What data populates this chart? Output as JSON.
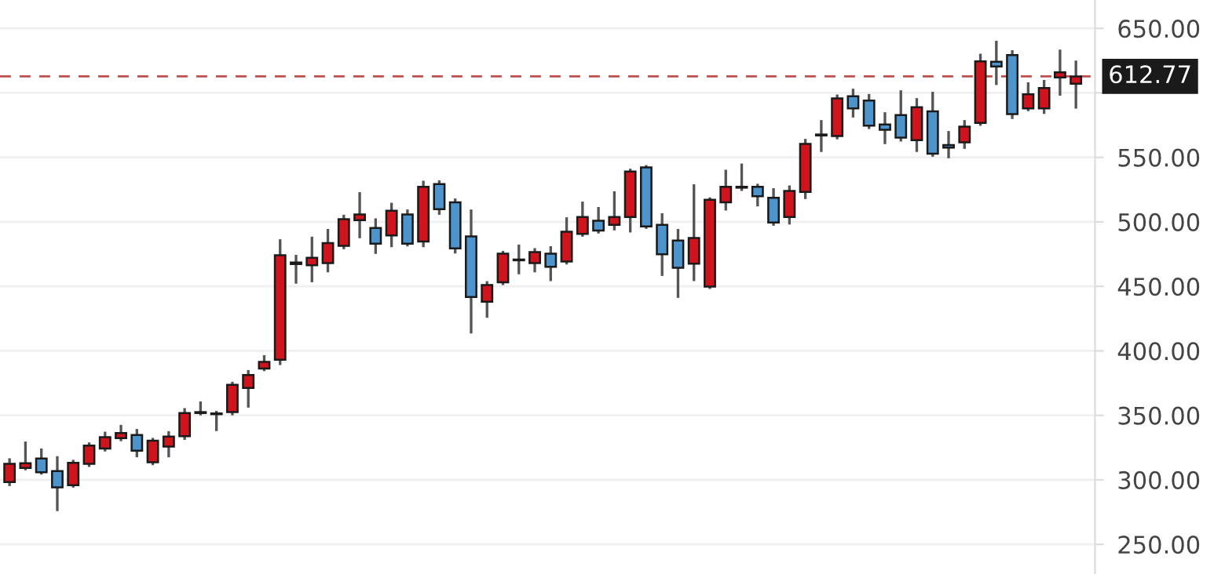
{
  "chart_data": {
    "type": "candlestick",
    "categories": [
      null,
      null,
      null,
      null,
      null,
      null,
      null,
      null,
      null,
      null,
      null,
      null,
      null,
      null,
      null,
      null,
      null,
      null,
      null,
      null,
      null,
      null,
      null,
      null,
      null,
      null,
      null,
      null,
      null,
      null,
      null,
      null,
      null,
      null,
      null,
      null,
      null,
      null,
      null,
      null,
      null,
      null,
      null,
      null,
      null,
      null,
      null,
      null,
      null,
      null,
      null,
      null,
      null,
      null,
      null,
      null,
      null,
      null,
      null,
      null,
      null,
      null,
      null,
      null,
      null,
      null,
      null,
      null
    ],
    "ohlc": [
      [
        298.3,
        315.7,
        296.2,
        312.4
      ],
      [
        309.2,
        328.7,
        308.4,
        312.9
      ],
      [
        316.5,
        323.3,
        305.1,
        305.9
      ],
      [
        306.8,
        317.3,
        276.8,
        294.2
      ],
      [
        295.9,
        314.5,
        295,
        313.2
      ],
      [
        312.4,
        328,
        311,
        326.6
      ],
      [
        324.2,
        336.3,
        323,
        333.1
      ],
      [
        332.3,
        341.6,
        331,
        336.3
      ],
      [
        334.8,
        338.4,
        318.5,
        322.6
      ],
      [
        313.6,
        331.5,
        312.4,
        330.3
      ],
      [
        325.8,
        336.7,
        318.5,
        333.5
      ],
      [
        333.9,
        354.6,
        332,
        351.8
      ],
      [
        351.8,
        359.8,
        351,
        352.5
      ],
      [
        350.9,
        352.5,
        338.8,
        351.5
      ],
      [
        352.5,
        375,
        351,
        373.7
      ],
      [
        371.2,
        384.1,
        357,
        381.3
      ],
      [
        386.2,
        395.6,
        385.3,
        391.4
      ],
      [
        393.1,
        485.5,
        390,
        474.1
      ],
      [
        467.3,
        473.4,
        453.1,
        468.5
      ],
      [
        466.4,
        487.5,
        454.2,
        472.1
      ],
      [
        468,
        493.5,
        461.9,
        483.5
      ],
      [
        481.4,
        504.5,
        479.8,
        502.1
      ],
      [
        501.3,
        522,
        488.3,
        505.7
      ],
      [
        495.2,
        501.7,
        476.2,
        483.1
      ],
      [
        489.5,
        513.8,
        481.4,
        508.6
      ],
      [
        505.7,
        508.6,
        482,
        483.1
      ],
      [
        484.7,
        530.9,
        481.4,
        527.2
      ],
      [
        529.3,
        531.2,
        506.5,
        509.8
      ],
      [
        515.1,
        517.1,
        476.5,
        479.4
      ],
      [
        488.7,
        508.6,
        414.5,
        441.7
      ],
      [
        438.1,
        453,
        426.7,
        451
      ],
      [
        453.1,
        476.5,
        452,
        475.3
      ],
      [
        470.2,
        481.4,
        460.4,
        470.8
      ],
      [
        468,
        478.6,
        461.9,
        476.5
      ],
      [
        475.3,
        480.1,
        455.1,
        465.2
      ],
      [
        469.2,
        502.5,
        468,
        492.3
      ],
      [
        490.7,
        514.7,
        489.5,
        503.8
      ],
      [
        500.8,
        510.5,
        492,
        493.2
      ],
      [
        497.7,
        522.7,
        494.4,
        503.8
      ],
      [
        503.8,
        540.2,
        492.8,
        539
      ],
      [
        542.2,
        543,
        495.6,
        496.5
      ],
      [
        497.7,
        505.7,
        459.1,
        474.9
      ],
      [
        485.5,
        493.5,
        442.1,
        464.4
      ],
      [
        467.6,
        528.1,
        455.1,
        487.5
      ],
      [
        449.8,
        518,
        449,
        517.1
      ],
      [
        515.1,
        539.4,
        509.8,
        527.2
      ],
      [
        526.5,
        544.2,
        525,
        527.2
      ],
      [
        527.2,
        528.5,
        513,
        519.9
      ],
      [
        518.7,
        525.1,
        498,
        499.5
      ],
      [
        503.8,
        527.2,
        499,
        523.9
      ],
      [
        523.2,
        563.3,
        518.7,
        560.4
      ],
      [
        567,
        577.9,
        555.2,
        567.7
      ],
      [
        566.5,
        597.7,
        565,
        595.7
      ],
      [
        597.4,
        602.2,
        581.9,
        588
      ],
      [
        594.1,
        598.1,
        573,
        574.6
      ],
      [
        575.5,
        584,
        561.3,
        571.4
      ],
      [
        582.8,
        601,
        563.3,
        565.3
      ],
      [
        563.3,
        594.9,
        555.2,
        588.9
      ],
      [
        585.6,
        599.8,
        551.5,
        552.8
      ],
      [
        559.6,
        569.4,
        550.3,
        557.6
      ],
      [
        561.6,
        577.9,
        557.6,
        573.8
      ],
      [
        576.7,
        629.3,
        575.5,
        624.5
      ],
      [
        624.1,
        639.4,
        607.1,
        620.5
      ],
      [
        629.3,
        632.1,
        580.7,
        583.5
      ],
      [
        588,
        607.1,
        586.8,
        598.9
      ],
      [
        588,
        609,
        584.7,
        603.8
      ],
      [
        611.9,
        632.6,
        598.9,
        615.9
      ],
      [
        607.1,
        624.1,
        588.8,
        612.77
      ]
    ],
    "colors": [
      "#d0141e",
      "#d0141e",
      "#4d94cc",
      "#4d94cc",
      "#d0141e",
      "#d0141e",
      "#d0141e",
      "#d0141e",
      "#4d94cc",
      "#d0141e",
      "#d0141e",
      "#d0141e",
      "#d0141e",
      "#d0141e",
      "#d0141e",
      "#d0141e",
      "#d0141e",
      "#d0141e",
      "#d0141e",
      "#d0141e",
      "#d0141e",
      "#d0141e",
      "#d0141e",
      "#4d94cc",
      "#d0141e",
      "#4d94cc",
      "#d0141e",
      "#4d94cc",
      "#4d94cc",
      "#4d94cc",
      "#d0141e",
      "#d0141e",
      "#d0141e",
      "#d0141e",
      "#4d94cc",
      "#d0141e",
      "#d0141e",
      "#4d94cc",
      "#d0141e",
      "#d0141e",
      "#4d94cc",
      "#4d94cc",
      "#4d94cc",
      "#d0141e",
      "#d0141e",
      "#d0141e",
      "#d0141e",
      "#4d94cc",
      "#4d94cc",
      "#d0141e",
      "#d0141e",
      "#d0141e",
      "#d0141e",
      "#4d94cc",
      "#4d94cc",
      "#4d94cc",
      "#4d94cc",
      "#d0141e",
      "#4d94cc",
      "#4d94cc",
      "#d0141e",
      "#d0141e",
      "#4d94cc",
      "#4d94cc",
      "#d0141e",
      "#d0141e",
      "#d0141e",
      "#d0141e"
    ],
    "ylim": [
      227,
      672
    ],
    "yticks": [
      {
        "value": 250,
        "label": "250.00"
      },
      {
        "value": 300,
        "label": "300.00"
      },
      {
        "value": 350,
        "label": "350.00"
      },
      {
        "value": 400,
        "label": "400.00"
      },
      {
        "value": 450,
        "label": "450.00"
      },
      {
        "value": 500,
        "label": "500.00"
      },
      {
        "value": 550,
        "label": "550.00"
      },
      {
        "value": 600,
        "label": null
      },
      {
        "value": 650,
        "label": "650.00"
      }
    ],
    "ref_lines": [
      {
        "axis": "y",
        "value": 612.77,
        "label": "612.77",
        "color": "#c0504d",
        "line_style": "dashed"
      }
    ],
    "grid": "y",
    "tick_labels": "y"
  }
}
